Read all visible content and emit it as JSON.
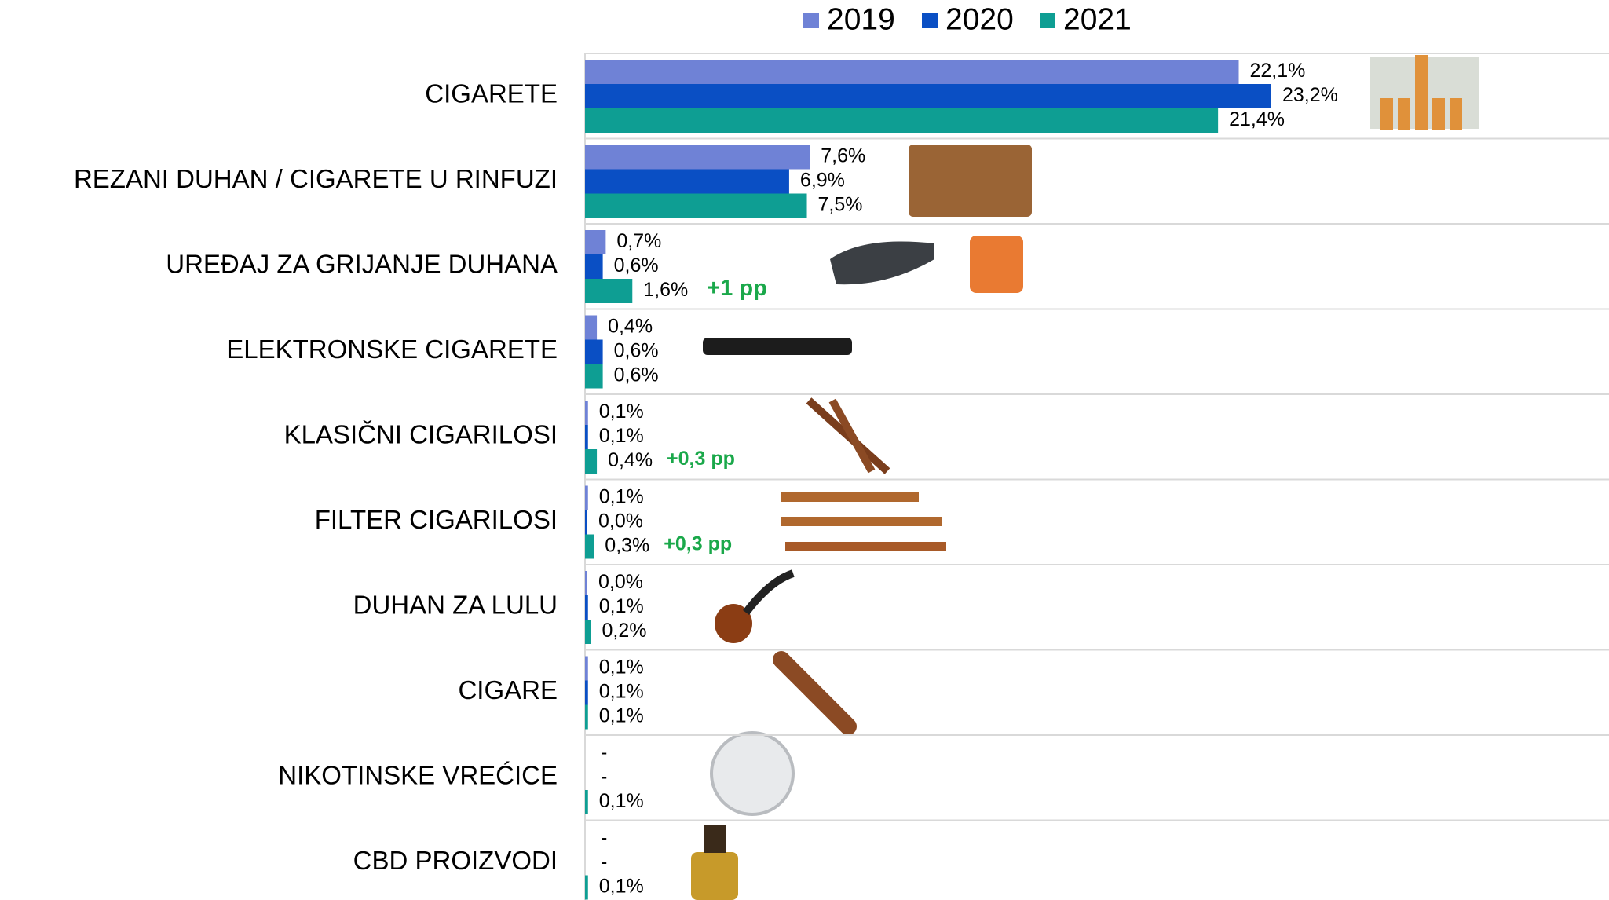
{
  "chart_data": {
    "type": "bar",
    "orientation": "horizontal",
    "categories": [
      "CIGARETE",
      "REZANI DUHAN / CIGARETE U RINFUZI",
      "UREĐAJ ZA GRIJANJE DUHANA",
      "ELEKTRONSKE CIGARETE",
      "KLASIČNI CIGARILOSI",
      "FILTER CIGARILOSI",
      "DUHAN ZA LULU",
      "CIGARE",
      "NIKOTINSKE VREĆICE",
      "CBD PROIZVODI"
    ],
    "series": [
      {
        "name": "2019",
        "color": "#6f82d6",
        "values": [
          22.1,
          7.6,
          0.7,
          0.4,
          0.1,
          0.1,
          0.0,
          0.1,
          null,
          null
        ],
        "value_labels": [
          "22,1%",
          "7,6%",
          "0,7%",
          "0,4%",
          "0,1%",
          "0,1%",
          "0,0%",
          "0,1%",
          "-",
          "-"
        ]
      },
      {
        "name": "2020",
        "color": "#0a4fc4",
        "values": [
          23.2,
          6.9,
          0.6,
          0.6,
          0.1,
          0.0,
          0.1,
          0.1,
          null,
          null
        ],
        "value_labels": [
          "23,2%",
          "6,9%",
          "0,6%",
          "0,6%",
          "0,1%",
          "0,0%",
          "0,1%",
          "0,1%",
          "-",
          "-"
        ]
      },
      {
        "name": "2021",
        "color": "#0e9e93",
        "values": [
          21.4,
          7.5,
          1.6,
          0.6,
          0.4,
          0.3,
          0.2,
          0.1,
          0.1,
          0.1
        ],
        "value_labels": [
          "21,4%",
          "7,5%",
          "1,6%",
          "0,6%",
          "0,4%",
          "0,3%",
          "0,2%",
          "0,1%",
          "0,1%",
          "0,1%"
        ]
      }
    ],
    "annotations": [
      null,
      null,
      "+1 pp",
      null,
      "+0,3 pp",
      "+0,3 pp",
      null,
      null,
      null,
      null
    ]
  }
}
